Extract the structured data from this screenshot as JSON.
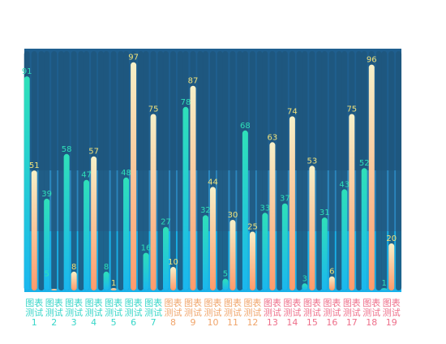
{
  "chart_data": {
    "type": "bar",
    "categories": [
      "图表测试1",
      "图表测试2",
      "图表测试3",
      "图表测试4",
      "图表测试5",
      "图表测试6",
      "图表测试7",
      "图表测试8",
      "图表测试9",
      "图表测试10",
      "图表测试11",
      "图表测试12",
      "图表测试13",
      "图表测试14",
      "图表测试15",
      "图表测试16",
      "图表测试17",
      "图表测试18",
      "图表测试19"
    ],
    "ylim": [
      0,
      100
    ],
    "series": [
      {
        "values": [
          91,
          39,
          58,
          47,
          8,
          48,
          16,
          27,
          78,
          32,
          5,
          68,
          33,
          37,
          3,
          31,
          43,
          52,
          1
        ]
      },
      {
        "values": [
          51,
          0,
          8,
          57,
          1,
          97,
          75,
          10,
          87,
          44,
          30,
          25,
          63,
          74,
          53,
          6,
          75,
          96,
          20
        ]
      }
    ],
    "extra_labels": [
      {
        "category_index": 1,
        "series_index": 0,
        "value": 5
      }
    ],
    "colors": {
      "series_a_top": "#2fe0b9",
      "series_a_bottom": "#1ab7ef",
      "series_b_top": "#f6f0c8",
      "series_b_bottom": "#ff9a6a",
      "background_track": "#1e567d",
      "band_dark": "#1f5f8f",
      "band_mid": "#2b86be",
      "band_light": "#19b2ea",
      "label_series_a": "#2fe0b9",
      "label_series_b": "#f1e27a",
      "axis_label_colors": [
        "#36d6c8",
        "#36d6c8",
        "#36d6c8",
        "#36d6c8",
        "#36d6c8",
        "#36d6c8",
        "#36d6c8",
        "#f0a46a",
        "#f0a46a",
        "#f0a46a",
        "#f0a46a",
        "#f0a46a",
        "#ee6f8a",
        "#ee6f8a",
        "#ee6f8a",
        "#ee6f8a",
        "#ee6f8a",
        "#ee6f8a",
        "#ee6f8a"
      ]
    },
    "xlabel": "",
    "ylabel": "",
    "title": "",
    "grid": false,
    "legend": "none"
  }
}
